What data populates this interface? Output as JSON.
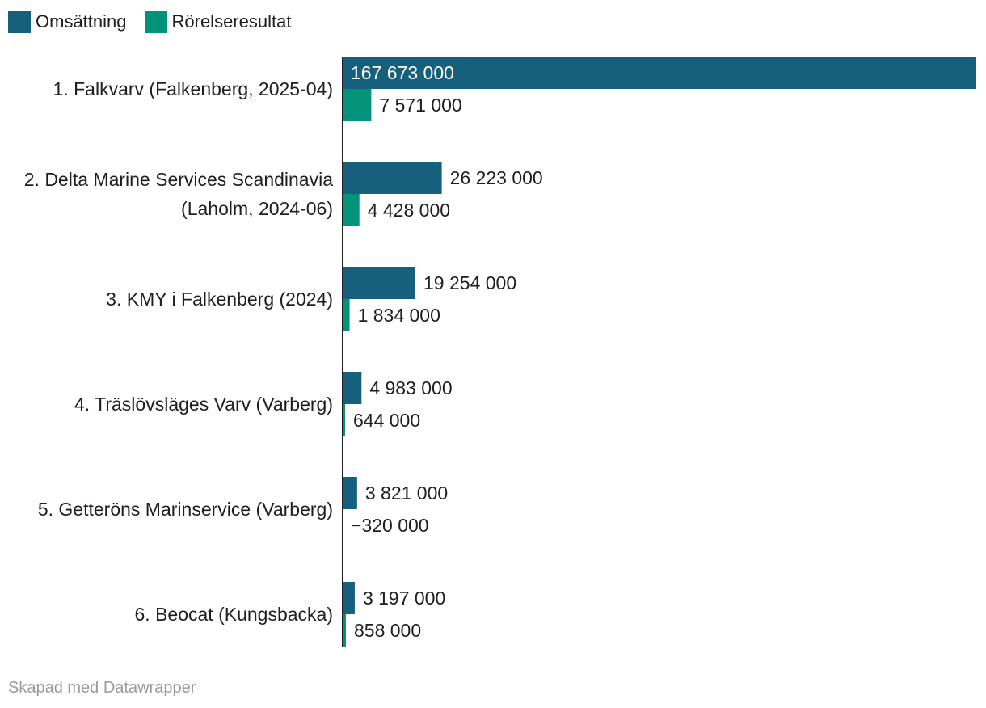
{
  "colors": {
    "revenue": "#17607d",
    "operating_result": "#02937a",
    "axis": "#1e1e1e",
    "label_inside": "#ffffff",
    "label_outside": "#1e1e1e",
    "footer": "#9a9a9a"
  },
  "legend": [
    {
      "name": "Omsättning",
      "color_key": "revenue"
    },
    {
      "name": "Rörelseresultat",
      "color_key": "operating_result"
    }
  ],
  "footer": "Skapad med Datawrapper",
  "chart_data": {
    "type": "bar",
    "orientation": "horizontal",
    "categories": [
      "1. Falkvarv (Falkenberg, 2025-04)",
      "2. Delta Marine Services Scandinavia (Laholm, 2024-06)",
      "3. KMY i Falkenberg (2024)",
      "4. Träslövsläges Varv (Varberg)",
      "5. Getteröns Marinservice (Varberg)",
      "6. Beocat (Kungsbacka)"
    ],
    "category_lines": [
      [
        "1. Falkvarv (Falkenberg, 2025-04)"
      ],
      [
        "2. Delta Marine Services Scandinavia",
        "(Laholm, 2024-06)"
      ],
      [
        "3. KMY i Falkenberg (2024)"
      ],
      [
        "4. Träslövsläges Varv (Varberg)"
      ],
      [
        "5. Getteröns Marinservice (Varberg)"
      ],
      [
        "6. Beocat (Kungsbacka)"
      ]
    ],
    "series": [
      {
        "name": "Omsättning",
        "values": [
          167673000,
          26223000,
          19254000,
          4983000,
          3821000,
          3197000
        ],
        "labels": [
          "167 673 000",
          "26 223 000",
          "19 254 000",
          "4 983 000",
          "3 821 000",
          "3 197 000"
        ]
      },
      {
        "name": "Rörelseresultat",
        "values": [
          7571000,
          4428000,
          1834000,
          644000,
          -320000,
          858000
        ],
        "labels": [
          "7 571 000",
          "4 428 000",
          "1 834 000",
          "644 000",
          "−320 000",
          "858 000"
        ]
      }
    ],
    "xlim": [
      -320000,
      167673000
    ],
    "grid": false,
    "legend_position": "top-left"
  }
}
